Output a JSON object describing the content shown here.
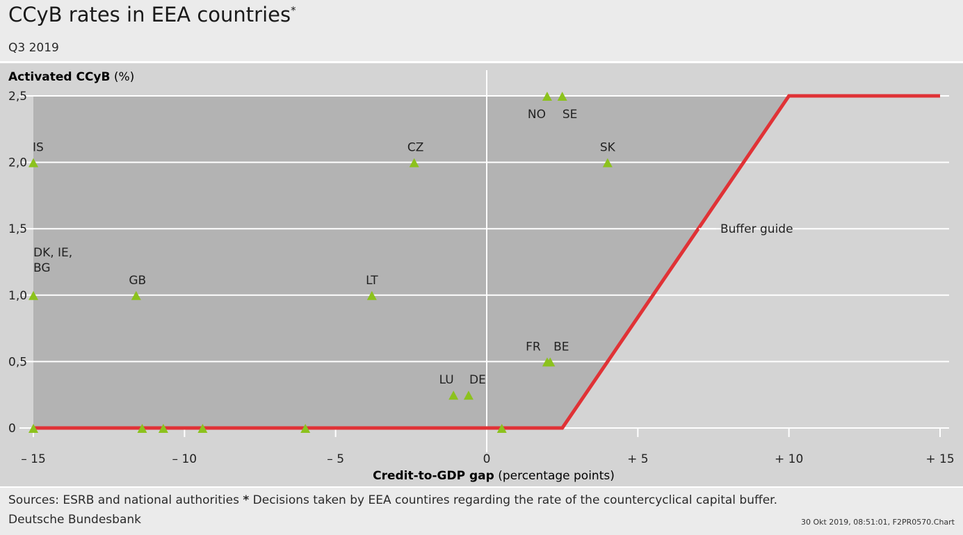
{
  "header": {
    "title": "CCyB rates in EEA countries",
    "title_marker": "*",
    "subtitle": "Q3 2019"
  },
  "footer": {
    "sources_text": "Sources: ESRB and national authorities",
    "footnote_marker": "*",
    "footnote_text": "Decisions taken by EEA countires regarding the rate of the countercyclical capital buffer.",
    "publisher": "Deutsche Bundesbank",
    "stamp": "30 Okt 2019, 08:51:01, F2PR0570.Chart"
  },
  "chart_data": {
    "type": "scatter",
    "title": "CCyB rates in EEA countries",
    "subtitle": "Q3 2019",
    "ylabel_bold": "Activated CCyB",
    "ylabel_unit": "(%)",
    "xlabel_bold": "Credit-to-GDP gap",
    "xlabel_unit": "(percentage points)",
    "xlim": [
      -15,
      15
    ],
    "ylim": [
      0,
      2.5
    ],
    "xticks": [
      {
        "value": -15,
        "label": "– 15"
      },
      {
        "value": -10,
        "label": "– 10"
      },
      {
        "value": -5,
        "label": "– 5"
      },
      {
        "value": 0,
        "label": "0"
      },
      {
        "value": 5,
        "label": "+ 5"
      },
      {
        "value": 10,
        "label": "+ 10"
      },
      {
        "value": 15,
        "label": "+ 15"
      }
    ],
    "yticks": [
      {
        "value": 0,
        "label": "0"
      },
      {
        "value": 0.5,
        "label": "0,5"
      },
      {
        "value": 1.0,
        "label": "1,0"
      },
      {
        "value": 1.5,
        "label": "1,5"
      },
      {
        "value": 2.0,
        "label": "2,0"
      },
      {
        "value": 2.5,
        "label": "2,5"
      }
    ],
    "grid": true,
    "colors": {
      "marker": "#8cc21d",
      "buffer_guide": "#e03236",
      "shaded_region": "#b3b3b3",
      "plot_background": "#d4d4d4",
      "gridline": "#ffffff"
    },
    "buffer_guide": {
      "label": "Buffer guide",
      "points": [
        [
          -15,
          0
        ],
        [
          2.5,
          0
        ],
        [
          10,
          2.5
        ],
        [
          15,
          2.5
        ]
      ]
    },
    "points": [
      {
        "x": -15.0,
        "y": 2.0,
        "label": "IS"
      },
      {
        "x": -2.4,
        "y": 2.0,
        "label": "CZ"
      },
      {
        "x": 4.0,
        "y": 2.0,
        "label": "SK"
      },
      {
        "x": 2.0,
        "y": 2.5,
        "label": "NO"
      },
      {
        "x": 2.5,
        "y": 2.5,
        "label": "SE"
      },
      {
        "x": -15.0,
        "y": 1.0,
        "label": "DK, IE, BG"
      },
      {
        "x": -11.6,
        "y": 1.0,
        "label": "GB"
      },
      {
        "x": -3.8,
        "y": 1.0,
        "label": "LT"
      },
      {
        "x": 2.0,
        "y": 0.5,
        "label": "FR"
      },
      {
        "x": 2.1,
        "y": 0.5,
        "label": "BE"
      },
      {
        "x": -1.1,
        "y": 0.25,
        "label": "LU"
      },
      {
        "x": -0.6,
        "y": 0.25,
        "label": "DE"
      },
      {
        "x": -15.0,
        "y": 0,
        "label": ""
      },
      {
        "x": -11.4,
        "y": 0,
        "label": ""
      },
      {
        "x": -10.7,
        "y": 0,
        "label": ""
      },
      {
        "x": -9.4,
        "y": 0,
        "label": ""
      },
      {
        "x": -6.0,
        "y": 0,
        "label": ""
      },
      {
        "x": 0.5,
        "y": 0,
        "label": ""
      }
    ]
  }
}
